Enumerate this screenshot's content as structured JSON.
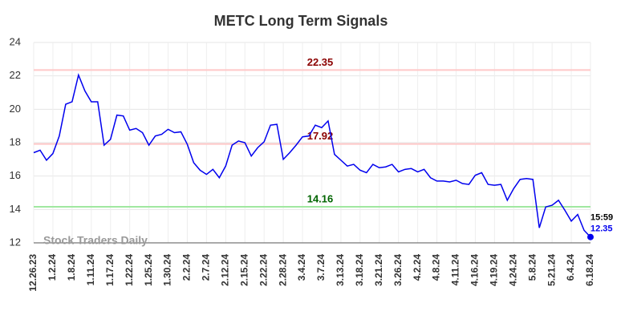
{
  "chart_data": {
    "type": "line",
    "title": "METC Long Term Signals",
    "categories": [
      "12.26.23",
      null,
      null,
      "1.2.24",
      null,
      null,
      "1.8.24",
      null,
      null,
      "1.11.24",
      null,
      null,
      "1.17.24",
      null,
      null,
      "1.22.24",
      null,
      null,
      "1.25.24",
      null,
      null,
      "1.30.24",
      null,
      null,
      "2.2.24",
      null,
      null,
      "2.7.24",
      null,
      null,
      "2.12.24",
      null,
      null,
      "2.15.24",
      null,
      null,
      "2.22.24",
      null,
      null,
      "2.28.24",
      null,
      null,
      "3.4.24",
      null,
      null,
      "3.7.24",
      null,
      null,
      "3.13.24",
      null,
      null,
      "3.18.24",
      null,
      null,
      "3.21.24",
      null,
      null,
      "3.26.24",
      null,
      null,
      "4.2.24",
      null,
      null,
      "4.8.24",
      null,
      null,
      "4.11.24",
      null,
      null,
      "4.16.24",
      null,
      null,
      "4.19.24",
      null,
      null,
      "4.24.24",
      null,
      null,
      "5.8.24",
      null,
      null,
      "5.21.24",
      null,
      null,
      "6.4.24",
      null,
      null,
      "6.18.24"
    ],
    "series": [
      {
        "color": "#0000ee",
        "values": [
          17.4,
          17.55,
          16.95,
          17.35,
          18.4,
          20.3,
          20.45,
          22.05,
          21.1,
          20.45,
          20.45,
          17.85,
          18.2,
          19.65,
          19.6,
          18.75,
          18.85,
          18.6,
          17.85,
          18.4,
          18.5,
          18.8,
          18.6,
          18.65,
          17.9,
          16.8,
          16.35,
          16.1,
          16.4,
          15.9,
          16.6,
          17.85,
          18.1,
          18.0,
          17.2,
          17.7,
          18.05,
          19.05,
          19.1,
          17.0,
          17.4,
          17.85,
          18.35,
          18.4,
          19.05,
          18.9,
          19.3,
          17.3,
          16.95,
          16.6,
          16.7,
          16.35,
          16.2,
          16.7,
          16.5,
          16.55,
          16.7,
          16.25,
          16.4,
          16.45,
          16.25,
          16.4,
          15.9,
          15.7,
          15.7,
          15.65,
          15.75,
          15.55,
          15.5,
          16.05,
          16.2,
          15.5,
          15.45,
          15.5,
          14.55,
          15.25,
          15.8,
          15.85,
          15.8,
          12.9,
          14.15,
          14.25,
          14.55,
          13.95,
          13.3,
          13.7,
          12.75,
          12.35
        ]
      }
    ],
    "levels": [
      {
        "value": 22.35,
        "color": "#ffc8c8",
        "label_color": "#8b0000"
      },
      {
        "value": 17.92,
        "color": "#ffc8c8",
        "label_color": "#8b0000"
      },
      {
        "value": 14.16,
        "color": "#a0e8a0",
        "label_color": "#006400"
      }
    ],
    "last_time": "15:59",
    "watermark": "Stock Traders Daily",
    "ylim": [
      12,
      24
    ],
    "yticks": [
      12,
      14,
      16,
      18,
      20,
      22,
      24
    ],
    "grid": true
  }
}
